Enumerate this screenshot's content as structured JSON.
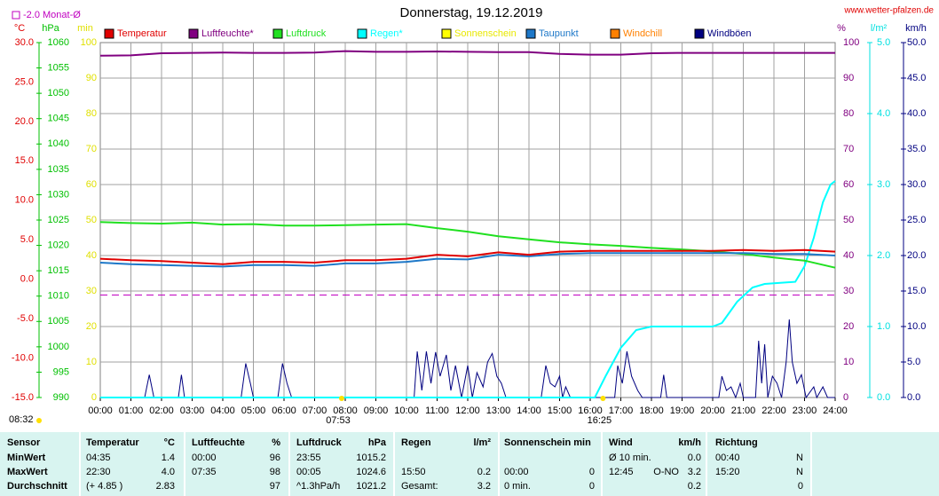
{
  "chart_data": {
    "type": "line",
    "title": "Donnerstag, 19.12.2019",
    "site": "www.wetter-pfalzen.de",
    "grid": true,
    "reference": {
      "label": "-2.0 Monat-Ø",
      "value": -2.0,
      "axis": "°C",
      "color": "#c000c0"
    },
    "xlim": [
      0,
      24
    ],
    "xticks": [
      {
        "value": 0,
        "label": "00:00"
      },
      {
        "value": 1,
        "label": "01:00"
      },
      {
        "value": 2,
        "label": "02:00"
      },
      {
        "value": 3,
        "label": "03:00"
      },
      {
        "value": 4,
        "label": "04:00"
      },
      {
        "value": 5,
        "label": "05:00"
      },
      {
        "value": 6,
        "label": "06:00"
      },
      {
        "value": 7,
        "label": "07:00"
      },
      {
        "value": 8,
        "label": "08:00"
      },
      {
        "value": 9,
        "label": "09:00"
      },
      {
        "value": 10,
        "label": "10:00"
      },
      {
        "value": 11,
        "label": "11:00"
      },
      {
        "value": 12,
        "label": "12:00"
      },
      {
        "value": 13,
        "label": "13:00"
      },
      {
        "value": 14,
        "label": "14:00"
      },
      {
        "value": 15,
        "label": "15:00"
      },
      {
        "value": 16,
        "label": "16:00"
      },
      {
        "value": 17,
        "label": "17:00"
      },
      {
        "value": 18,
        "label": "18:00"
      },
      {
        "value": 19,
        "label": "19:00"
      },
      {
        "value": 20,
        "label": "20:00"
      },
      {
        "value": 21,
        "label": "21:00"
      },
      {
        "value": 22,
        "label": "22:00"
      },
      {
        "value": 23,
        "label": "23:00"
      },
      {
        "value": 24,
        "label": "24:00"
      }
    ],
    "axes": [
      {
        "label": "°C",
        "color": "#e00000",
        "lim": [
          -15,
          30
        ],
        "ticks": [
          {
            "value": -15,
            "label": "-15.0"
          },
          {
            "value": -10,
            "label": "-10.0"
          },
          {
            "value": -5,
            "label": "-5.0"
          },
          {
            "value": 0,
            "label": "0.0"
          },
          {
            "value": 5,
            "label": "5.0"
          },
          {
            "value": 10,
            "label": "10.0"
          },
          {
            "value": 15,
            "label": "15.0"
          },
          {
            "value": 20,
            "label": "20.0"
          },
          {
            "value": 25,
            "label": "25.0"
          },
          {
            "value": 30,
            "label": "30.0"
          }
        ]
      },
      {
        "label": "hPa",
        "color": "#00c000",
        "lim": [
          990,
          1060
        ],
        "ticks": [
          990,
          995,
          1000,
          1005,
          1010,
          1015,
          1020,
          1025,
          1030,
          1035,
          1040,
          1045,
          1050,
          1055,
          1060
        ]
      },
      {
        "label": "min",
        "color": "#e0e000",
        "lim": [
          0,
          100
        ],
        "ticks": [
          0,
          10,
          20,
          30,
          40,
          50,
          60,
          70,
          80,
          90,
          100
        ]
      },
      {
        "label": "%",
        "color": "#800080",
        "lim": [
          0,
          100
        ],
        "ticks": [
          0,
          10,
          20,
          30,
          40,
          50,
          60,
          70,
          80,
          90,
          100
        ]
      },
      {
        "label": "l/m²",
        "color": "#00e0e0",
        "lim": [
          0,
          5
        ],
        "ticks": [
          {
            "value": 0,
            "label": "0.0"
          },
          {
            "value": 1,
            "label": "1.0"
          },
          {
            "value": 2,
            "label": "2.0"
          },
          {
            "value": 3,
            "label": "3.0"
          },
          {
            "value": 4,
            "label": "4.0"
          },
          {
            "value": 5,
            "label": "5.0"
          }
        ]
      },
      {
        "label": "km/h",
        "color": "#000080",
        "lim": [
          0,
          50
        ],
        "ticks": [
          {
            "value": 0,
            "label": "0.0"
          },
          {
            "value": 5,
            "label": "5.0"
          },
          {
            "value": 10,
            "label": "10.0"
          },
          {
            "value": 15,
            "label": "15.0"
          },
          {
            "value": 20,
            "label": "20.0"
          },
          {
            "value": 25,
            "label": "25.0"
          },
          {
            "value": 30,
            "label": "30.0"
          },
          {
            "value": 35,
            "label": "35.0"
          },
          {
            "value": 40,
            "label": "40.0"
          },
          {
            "value": 45,
            "label": "45.0"
          },
          {
            "value": 50,
            "label": "50.0"
          }
        ]
      }
    ],
    "series": [
      {
        "name": "Temperatur",
        "color": "#e00000",
        "axis": "°C",
        "x": [
          0,
          1,
          2,
          3,
          4,
          5,
          6,
          7,
          8,
          9,
          10,
          11,
          12,
          13,
          14,
          15,
          16,
          17,
          18,
          19,
          20,
          21,
          22,
          23,
          24
        ],
        "values": [
          2.6,
          2.4,
          2.3,
          2.1,
          1.9,
          2.2,
          2.2,
          2.1,
          2.4,
          2.4,
          2.6,
          3.1,
          2.9,
          3.4,
          3.1,
          3.5,
          3.6,
          3.6,
          3.6,
          3.6,
          3.6,
          3.7,
          3.6,
          3.7,
          3.5
        ]
      },
      {
        "name": "Luftfeuchte*",
        "color": "#800080",
        "axis": "%",
        "x": [
          0,
          1,
          2,
          3,
          4,
          5,
          6,
          7,
          8,
          9,
          10,
          11,
          12,
          13,
          14,
          15,
          16,
          17,
          18,
          19,
          20,
          21,
          22,
          23,
          24
        ],
        "values": [
          96.3,
          96.4,
          97.0,
          97.1,
          97.2,
          97.1,
          97.1,
          97.2,
          97.6,
          97.4,
          97.4,
          97.5,
          97.4,
          97.3,
          97.3,
          96.8,
          96.6,
          96.6,
          97.0,
          97.1,
          97.1,
          97.1,
          97.1,
          97.1,
          97.1
        ]
      },
      {
        "name": "Luftdruck",
        "color": "#20e020",
        "axis": "hPa",
        "x": [
          0,
          1,
          2,
          3,
          4,
          5,
          6,
          7,
          8,
          9,
          10,
          11,
          12,
          13,
          14,
          15,
          16,
          17,
          18,
          19,
          20,
          21,
          22,
          23,
          24
        ],
        "values": [
          1024.6,
          1024.4,
          1024.3,
          1024.5,
          1024.1,
          1024.2,
          1023.9,
          1023.9,
          1024.0,
          1024.1,
          1024.2,
          1023.4,
          1022.7,
          1021.8,
          1021.2,
          1020.6,
          1020.2,
          1019.9,
          1019.5,
          1019.2,
          1018.8,
          1018.3,
          1017.6,
          1017.0,
          1015.6
        ]
      },
      {
        "name": "Regen*",
        "color": "#00ffff",
        "axis": "l/m²",
        "x": [
          0,
          16.15,
          16.5,
          17,
          17.5,
          18,
          19,
          20,
          20.3,
          20.8,
          21.3,
          21.7,
          22.7,
          23,
          23.3,
          23.6,
          23.85,
          24
        ],
        "values": [
          0,
          0,
          0.3,
          0.7,
          0.95,
          1.0,
          1.0,
          1.0,
          1.05,
          1.35,
          1.55,
          1.6,
          1.63,
          1.85,
          2.25,
          2.75,
          3.0,
          3.05
        ]
      },
      {
        "name": "Sonnenschein",
        "color": "#ffff00",
        "axis": "min",
        "x": [],
        "values": []
      },
      {
        "name": "Taupunkt",
        "color": "#1e78c8",
        "axis": "°C",
        "x": [
          0,
          1,
          2,
          3,
          4,
          5,
          6,
          7,
          8,
          9,
          10,
          11,
          12,
          13,
          14,
          15,
          16,
          17,
          18,
          19,
          20,
          21,
          22,
          23,
          24
        ],
        "values": [
          2.1,
          1.9,
          1.8,
          1.7,
          1.6,
          1.8,
          1.8,
          1.7,
          2.0,
          2.0,
          2.2,
          2.6,
          2.5,
          3.1,
          2.9,
          3.2,
          3.3,
          3.3,
          3.3,
          3.3,
          3.3,
          3.3,
          3.2,
          3.2,
          3.0
        ]
      },
      {
        "name": "Windchill",
        "color": "#ff8000",
        "axis": "°C",
        "x": [],
        "values": []
      },
      {
        "name": "Windböen",
        "color": "#000080",
        "axis": "km/h",
        "x": [
          0,
          1.45,
          1.6,
          1.75,
          2.55,
          2.65,
          2.75,
          4.6,
          4.75,
          4.9,
          5.0,
          5.8,
          5.95,
          6.1,
          6.25,
          10.25,
          10.35,
          10.5,
          10.65,
          10.8,
          10.95,
          11.1,
          11.3,
          11.45,
          11.6,
          11.8,
          12.0,
          12.15,
          12.3,
          12.5,
          12.65,
          12.8,
          12.95,
          13.1,
          13.25,
          14.4,
          14.55,
          14.7,
          14.85,
          15.0,
          15.1,
          15.2,
          15.35,
          16.8,
          16.9,
          17.05,
          17.2,
          17.35,
          17.55,
          17.7,
          18.3,
          18.4,
          18.5,
          20.2,
          20.3,
          20.45,
          20.6,
          20.75,
          20.9,
          21.0,
          21.4,
          21.5,
          21.6,
          21.7,
          21.8,
          21.95,
          22.1,
          22.25,
          22.4,
          22.5,
          22.6,
          22.75,
          22.9,
          23.05,
          23.3,
          23.4,
          23.6,
          23.75,
          24
        ],
        "values": [
          0,
          0,
          3.2,
          0,
          0,
          3.2,
          0,
          0,
          4.8,
          2.0,
          0,
          0,
          4.8,
          2.0,
          0,
          0,
          6.5,
          1.0,
          6.5,
          2.0,
          6.4,
          3.0,
          6.0,
          1.0,
          4.5,
          0,
          4.5,
          0,
          3.5,
          1.5,
          5.0,
          6.2,
          3.0,
          2.0,
          0,
          0,
          4.5,
          2.0,
          1.5,
          3.0,
          0,
          1.5,
          0,
          0,
          4.5,
          2.0,
          6.5,
          3.0,
          1.0,
          0,
          0,
          3.2,
          0,
          0,
          3.0,
          1.0,
          1.5,
          0,
          2.0,
          0,
          0,
          8.0,
          2.0,
          7.5,
          0,
          3.0,
          2.0,
          0,
          5.0,
          11.0,
          5.0,
          2.0,
          3.2,
          0,
          1.5,
          0,
          1.5,
          0,
          0
        ]
      }
    ],
    "corner_label": "08:32",
    "annotations": [
      {
        "text": "07:53",
        "x": 7.883
      },
      {
        "text": "16:25",
        "x": 16.417
      }
    ]
  },
  "table": {
    "rows": [
      [
        "Sensor",
        "Temperatur",
        "°C",
        "Luftfeuchte",
        "%",
        "Luftdruck",
        "hPa",
        "Regen",
        "l/m²",
        "Sonnenschein min",
        null,
        "Wind",
        null,
        "km/h",
        "Richtung",
        null
      ],
      [
        "MinWert",
        "04:35",
        "1.4",
        "00:00",
        "96",
        "23:55",
        "1015.2",
        null,
        null,
        null,
        null,
        "Ø 10 min.",
        null,
        "0.0",
        "00:40",
        "N"
      ],
      [
        "MaxWert",
        "22:30",
        "4.0",
        "07:35",
        "98",
        "00:05",
        "1024.6",
        "15:50",
        "0.2",
        "00:00",
        "0",
        "12:45",
        "O-NO",
        "3.2",
        "15:20",
        "N"
      ],
      [
        "Durchschnitt",
        "(+ 4.85 )",
        "2.83",
        null,
        "97",
        "^1.3hPa/h",
        "1021.2",
        "Gesamt:",
        "3.2",
        "0 min.",
        "0",
        null,
        null,
        "0.2",
        null,
        "0"
      ]
    ]
  }
}
